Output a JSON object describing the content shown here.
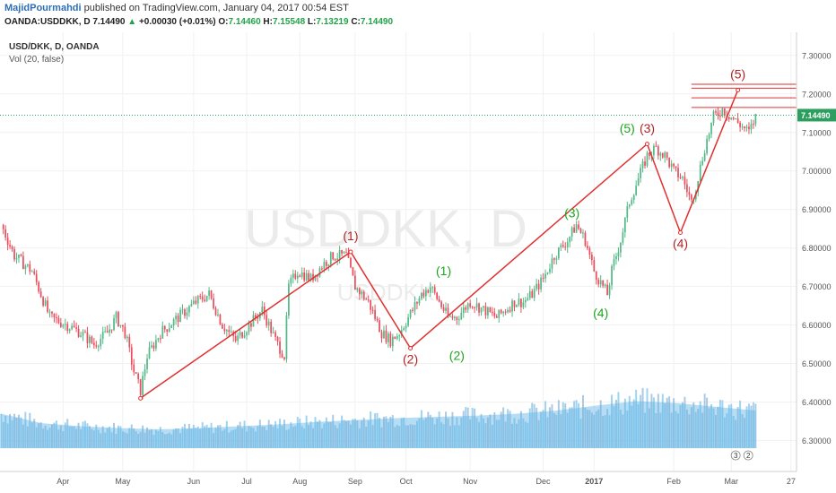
{
  "header": {
    "author": "MajidPourmahdi",
    "published_text": "published on TradingView.com, January 04, 2017 00:54 EST",
    "symbol": "OANDA:USDDKK, D",
    "last": "7.14490",
    "change": "+0.00030 (+0.01%)",
    "o_label": "O:",
    "o_value": "7.14460",
    "h_label": "H:",
    "h_value": "7.15548",
    "l_label": "L:",
    "l_value": "7.13219",
    "c_label": "C:",
    "c_value": "7.14490"
  },
  "legend": {
    "series": "USD/DKK, D, OANDA",
    "indicator": "Vol (20, false)"
  },
  "watermark": {
    "main": "USDDKK, D",
    "sub": "USDDKK"
  },
  "colors": {
    "up_candle": "#53b987",
    "down_candle": "#eb4d5c",
    "wave_red": "#e03030",
    "wave_green": "#1ea51e",
    "count_red": "#b22222",
    "volume_blue": "#5fb3e6",
    "volume_red": "#f0a0a0",
    "volume_green": "#90d890",
    "last_price_tag": "#2c9f5f"
  },
  "chart_data": {
    "type": "candlestick",
    "x_ticks": [
      "Apr",
      "May",
      "Jun",
      "Jul",
      "Aug",
      "Sep",
      "Oct",
      "Nov",
      "Dec",
      "2017",
      "Feb",
      "Mar",
      "27"
    ],
    "y_ticks": [
      "7.30000",
      "7.20000",
      "7.10000",
      "7.00000",
      "6.90000",
      "6.80000",
      "6.70000",
      "6.60000",
      "6.50000",
      "6.40000",
      "6.30000"
    ],
    "ylim": [
      6.22,
      7.36
    ],
    "last_price": "7.14490",
    "price_path": [
      [
        0,
        6.86
      ],
      [
        6,
        6.78
      ],
      [
        14,
        6.74
      ],
      [
        22,
        6.62
      ],
      [
        30,
        6.6
      ],
      [
        36,
        6.58
      ],
      [
        42,
        6.55
      ],
      [
        48,
        6.58
      ],
      [
        52,
        6.62
      ],
      [
        56,
        6.58
      ],
      [
        60,
        6.48
      ],
      [
        63,
        6.43
      ],
      [
        66,
        6.52
      ],
      [
        72,
        6.58
      ],
      [
        80,
        6.62
      ],
      [
        88,
        6.66
      ],
      [
        94,
        6.68
      ],
      [
        100,
        6.6
      ],
      [
        106,
        6.56
      ],
      [
        112,
        6.6
      ],
      [
        118,
        6.64
      ],
      [
        124,
        6.56
      ],
      [
        128,
        6.52
      ],
      [
        130,
        6.7
      ],
      [
        134,
        6.74
      ],
      [
        140,
        6.72
      ],
      [
        146,
        6.76
      ],
      [
        150,
        6.78
      ],
      [
        156,
        6.78
      ],
      [
        160,
        6.7
      ],
      [
        166,
        6.66
      ],
      [
        172,
        6.58
      ],
      [
        176,
        6.56
      ],
      [
        180,
        6.58
      ],
      [
        186,
        6.64
      ],
      [
        190,
        6.68
      ],
      [
        194,
        6.7
      ],
      [
        198,
        6.66
      ],
      [
        202,
        6.62
      ],
      [
        206,
        6.62
      ],
      [
        212,
        6.66
      ],
      [
        218,
        6.64
      ],
      [
        224,
        6.62
      ],
      [
        228,
        6.64
      ],
      [
        232,
        6.66
      ],
      [
        236,
        6.66
      ],
      [
        240,
        6.68
      ],
      [
        245,
        6.72
      ],
      [
        250,
        6.78
      ],
      [
        256,
        6.82
      ],
      [
        260,
        6.86
      ],
      [
        264,
        6.82
      ],
      [
        268,
        6.74
      ],
      [
        272,
        6.7
      ],
      [
        274,
        6.68
      ],
      [
        276,
        6.74
      ],
      [
        280,
        6.82
      ],
      [
        284,
        6.92
      ],
      [
        288,
        6.98
      ],
      [
        292,
        7.04
      ],
      [
        296,
        7.06
      ],
      [
        300,
        7.04
      ],
      [
        304,
        7.0
      ],
      [
        308,
        6.98
      ],
      [
        312,
        6.92
      ],
      [
        314,
        6.96
      ],
      [
        318,
        7.06
      ],
      [
        322,
        7.14
      ],
      [
        326,
        7.16
      ],
      [
        330,
        7.14
      ],
      [
        334,
        7.12
      ],
      [
        338,
        7.1
      ],
      [
        341,
        7.14
      ]
    ],
    "volume_levels": [
      0.55,
      0.4,
      0.35,
      0.32,
      0.3,
      0.32,
      0.35,
      0.38,
      0.42,
      0.45,
      0.48,
      0.5,
      0.52,
      0.55,
      0.6,
      0.68,
      0.75,
      0.72,
      0.66,
      0.6
    ],
    "waves": [
      {
        "color": "red",
        "points": [
          [
            63,
            6.41
          ],
          [
            158,
            6.79
          ],
          [
            185,
            6.54
          ],
          [
            292,
            7.07
          ],
          [
            307,
            6.84
          ],
          [
            333,
            7.21
          ]
        ],
        "labels": [
          {
            "text": "(1)",
            "at": [
              158,
              6.82
            ]
          },
          {
            "text": "(2)",
            "at": [
              185,
              6.5
            ]
          },
          {
            "text": "(3)",
            "at": [
              292,
              7.1
            ]
          },
          {
            "text": "(4)",
            "at": [
              307,
              6.8
            ]
          },
          {
            "text": "(5)",
            "at": [
              333,
              7.24
            ]
          }
        ]
      },
      {
        "color": "green",
        "labels": [
          {
            "text": "(1)",
            "at": [
              200,
              6.73
            ]
          },
          {
            "text": "(2)",
            "at": [
              206,
              6.51
            ]
          },
          {
            "text": "(3)",
            "at": [
              258,
              6.88
            ]
          },
          {
            "text": "(4)",
            "at": [
              271,
              6.62
            ]
          },
          {
            "text": "(5)",
            "at": [
              283,
              7.1
            ]
          }
        ]
      }
    ],
    "resistance_lines": [
      7.225,
      7.215,
      7.19,
      7.165
    ],
    "axis_badges": [
      "3",
      "2"
    ]
  }
}
